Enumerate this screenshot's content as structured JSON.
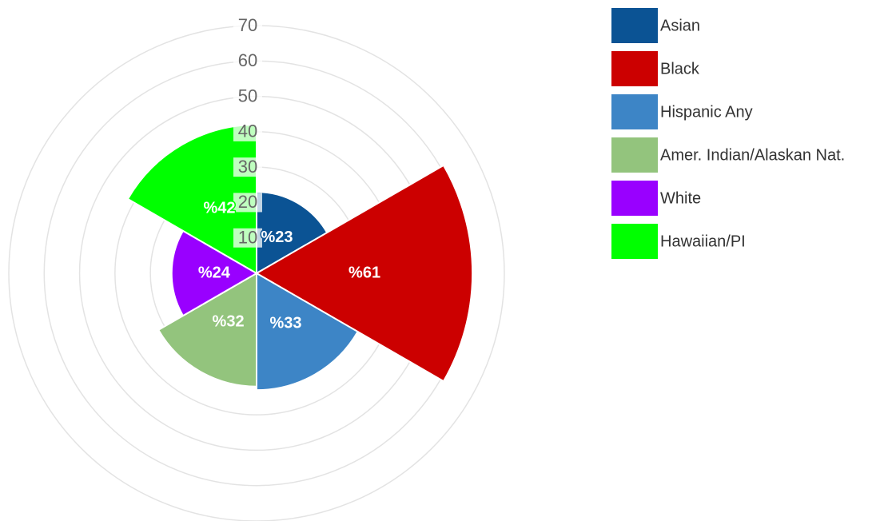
{
  "chart_data": {
    "type": "polarArea",
    "series": [
      {
        "name": "Asian",
        "color": "#0b5394",
        "values": [
          23
        ],
        "value_labels": [
          "%23"
        ]
      },
      {
        "name": "Black",
        "color": "#cc0000",
        "values": [
          61
        ],
        "value_labels": [
          "%61"
        ]
      },
      {
        "name": "Hispanic Any",
        "color": "#3d85c6",
        "values": [
          33
        ],
        "value_labels": [
          "%33"
        ]
      },
      {
        "name": "Amer. Indian/Alaskan Nat.",
        "color": "#93c47d",
        "values": [
          32
        ],
        "value_labels": [
          "%32"
        ]
      },
      {
        "name": "White",
        "color": "#9900ff",
        "values": [
          24
        ],
        "value_labels": [
          "%24"
        ]
      },
      {
        "name": "Hawaiian/PI",
        "color": "#00ff00",
        "values": [
          42
        ],
        "value_labels": [
          "%42"
        ]
      }
    ],
    "ylim": [
      0,
      70
    ],
    "yticks": [
      10,
      20,
      30,
      40,
      50,
      60,
      70
    ],
    "grid": true,
    "legend": "top-right"
  }
}
